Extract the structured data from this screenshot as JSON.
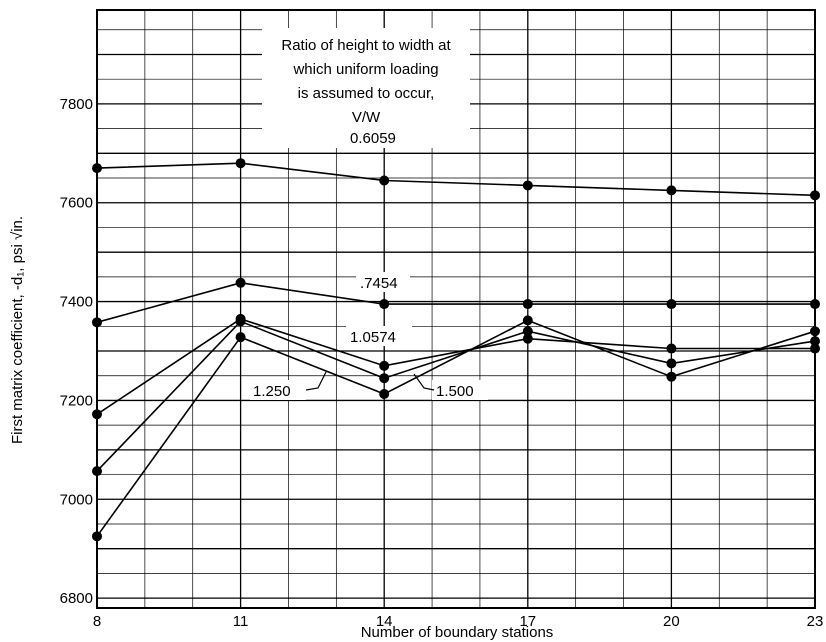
{
  "chart_data": {
    "type": "line",
    "title": "",
    "xlabel": "Number of boundary stations",
    "ylabel": "First matrix coefficient, -d₁, psi √in.",
    "x": [
      8,
      11,
      14,
      17,
      20,
      23
    ],
    "x_ticks": [
      8,
      11,
      14,
      17,
      20,
      23
    ],
    "y_ticks": [
      6800,
      7000,
      7200,
      7400,
      7600,
      7800
    ],
    "xlim": [
      8,
      23
    ],
    "ylim": [
      6780,
      7990
    ],
    "grid": true,
    "legend_title_lines": [
      "Ratio of height to width at",
      "which uniform loading",
      "is assumed to occur,",
      "V/W"
    ],
    "series": [
      {
        "name": "0.6059",
        "values": [
          7670,
          7680,
          7645,
          7635,
          7625,
          7615
        ]
      },
      {
        "name": ".7454",
        "values": [
          7358,
          7438,
          7395,
          7395,
          7395,
          7395
        ]
      },
      {
        "name": "1.0574",
        "values": [
          7172,
          7365,
          7270,
          7325,
          7305,
          7305
        ]
      },
      {
        "name": "1.250",
        "values": [
          7057,
          7360,
          7245,
          7340,
          7275,
          7320
        ]
      },
      {
        "name": "1.500",
        "values": [
          6925,
          7328,
          7213,
          7362,
          7248,
          7340
        ]
      }
    ]
  }
}
